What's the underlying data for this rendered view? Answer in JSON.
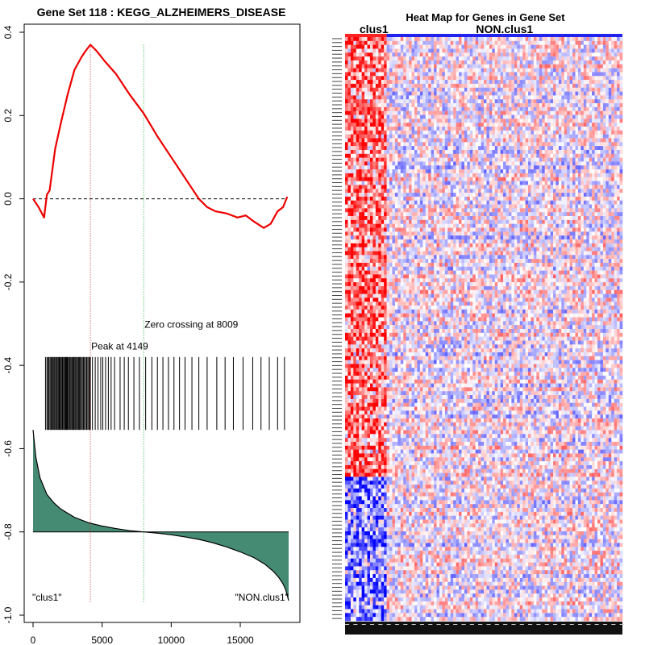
{
  "chart_data": [
    {
      "type": "line",
      "title": "Gene Set  118 : KEGG_ALZHEIMERS_DISEASE",
      "xlim": [
        0,
        18500
      ],
      "ylim": [
        -1.0,
        0.4
      ],
      "x_ticks": [
        0,
        5000,
        10000,
        15000
      ],
      "y_ticks": [
        -1.0,
        -0.8,
        -0.6,
        -0.4,
        -0.2,
        0.0,
        0.2,
        0.4
      ],
      "colors": {
        "es_line": "#ee0000",
        "peak_line": "#cc2222",
        "zero_line": "#22aa22",
        "ranked_fill": "#458b74"
      },
      "series": [
        {
          "type": "line",
          "x": [
            0,
            400,
            800,
            1000,
            1200,
            1600,
            2000,
            2500,
            3000,
            3500,
            3800,
            4149,
            4600,
            5200,
            6000,
            7000,
            8009,
            9000,
            10000,
            11000,
            12000,
            12600,
            13200,
            14000,
            14800,
            15400,
            16000,
            16700,
            17200,
            17700,
            18100,
            18400
          ],
          "y": [
            0.0,
            -0.02,
            -0.045,
            0.01,
            0.02,
            0.12,
            0.18,
            0.25,
            0.31,
            0.34,
            0.355,
            0.37,
            0.355,
            0.33,
            0.3,
            0.25,
            0.205,
            0.15,
            0.1,
            0.05,
            0.0,
            -0.02,
            -0.03,
            -0.035,
            -0.045,
            -0.04,
            -0.055,
            -0.07,
            -0.06,
            -0.03,
            -0.02,
            0.005
          ]
        }
      ],
      "peak": {
        "x": 4149,
        "label": "Peak at 4149"
      },
      "zero_crossing": {
        "x": 8009,
        "label": "Zero crossing at 8009"
      },
      "hit_band": {
        "y_top": -0.38,
        "y_bottom": -0.555
      },
      "hits": [
        900,
        1000,
        1080,
        1150,
        1230,
        1300,
        1360,
        1420,
        1500,
        1560,
        1630,
        1700,
        1760,
        1830,
        1900,
        1960,
        2030,
        2100,
        2160,
        2230,
        2300,
        2360,
        2420,
        2480,
        2550,
        2620,
        2680,
        2750,
        2820,
        2880,
        2950,
        3020,
        3080,
        3150,
        3220,
        3290,
        3350,
        3420,
        3500,
        3570,
        3650,
        3720,
        3800,
        3880,
        3960,
        4040,
        4100,
        4149,
        4300,
        4500,
        4700,
        4900,
        5050,
        5250,
        5450,
        5650,
        5900,
        6300,
        6600,
        6900,
        7300,
        7700,
        8150,
        8600,
        9000,
        9400,
        9800,
        10200,
        10600,
        11000,
        11500,
        12000,
        12600,
        13300,
        13900,
        14500,
        15200,
        15900,
        16500,
        17100,
        17700,
        18200
      ],
      "ranked_metric": {
        "baseline": -0.8,
        "x": [
          0,
          200,
          500,
          1000,
          1500,
          2000,
          3000,
          4000,
          5000,
          6000,
          7000,
          8000,
          9000,
          10000,
          11000,
          12000,
          13000,
          14000,
          15000,
          16000,
          16800,
          17400,
          17800,
          18100,
          18300,
          18500
        ],
        "y": [
          -0.555,
          -0.62,
          -0.67,
          -0.71,
          -0.73,
          -0.745,
          -0.765,
          -0.778,
          -0.786,
          -0.792,
          -0.797,
          -0.8,
          -0.803,
          -0.807,
          -0.812,
          -0.818,
          -0.826,
          -0.836,
          -0.848,
          -0.862,
          -0.878,
          -0.895,
          -0.91,
          -0.925,
          -0.94,
          -0.965
        ]
      },
      "left_label": "\"clus1\"",
      "right_label": "\"NON.clus1\""
    },
    {
      "type": "heatmap",
      "title": "Heat Map for Genes in Gene Set",
      "groups": [
        {
          "name": "clus1",
          "color": "#ff2222"
        },
        {
          "name": "NON.clus1",
          "color": "#2222ee"
        }
      ],
      "rows": 150,
      "columns": 100,
      "group_split_column": 15,
      "colors": {
        "high": "#ff0000",
        "low": "#0000ff",
        "mid": "#ffffff"
      }
    }
  ]
}
